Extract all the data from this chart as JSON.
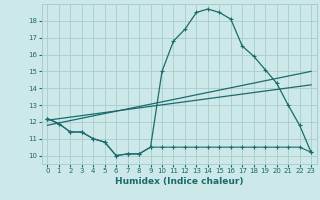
{
  "xlabel": "Humidex (Indice chaleur)",
  "bg_color": "#cce8e8",
  "grid_color": "#aacccc",
  "line_color": "#1a6b6b",
  "xlim": [
    -0.5,
    23.5
  ],
  "ylim": [
    9.5,
    19.0
  ],
  "yticks": [
    10,
    11,
    12,
    13,
    14,
    15,
    16,
    17,
    18
  ],
  "xticks": [
    0,
    1,
    2,
    3,
    4,
    5,
    6,
    7,
    8,
    9,
    10,
    11,
    12,
    13,
    14,
    15,
    16,
    17,
    18,
    19,
    20,
    21,
    22,
    23
  ],
  "main_x": [
    0,
    1,
    2,
    3,
    4,
    5,
    6,
    7,
    8,
    9,
    10,
    11,
    12,
    13,
    14,
    15,
    16,
    17,
    18,
    19,
    20,
    21,
    22,
    23
  ],
  "main_y": [
    12.2,
    11.9,
    11.4,
    11.4,
    11.0,
    10.8,
    10.0,
    10.1,
    10.1,
    10.5,
    15.0,
    16.8,
    17.5,
    18.5,
    18.7,
    18.5,
    18.1,
    16.5,
    15.9,
    15.1,
    14.3,
    13.0,
    11.8,
    10.2
  ],
  "trend1_x": [
    0,
    23
  ],
  "trend1_y": [
    11.8,
    15.0
  ],
  "trend2_x": [
    0,
    23
  ],
  "trend2_y": [
    12.1,
    14.2
  ],
  "lower_x": [
    0,
    1,
    2,
    3,
    4,
    5,
    6,
    7,
    8,
    9,
    10,
    11,
    12,
    13,
    14,
    15,
    16,
    17,
    18,
    19,
    20,
    21,
    22,
    23
  ],
  "lower_y": [
    12.2,
    11.9,
    11.4,
    11.4,
    11.0,
    10.8,
    10.0,
    10.1,
    10.1,
    10.5,
    10.5,
    10.5,
    10.5,
    10.5,
    10.5,
    10.5,
    10.5,
    10.5,
    10.5,
    10.5,
    10.5,
    10.5,
    10.5,
    10.2
  ]
}
